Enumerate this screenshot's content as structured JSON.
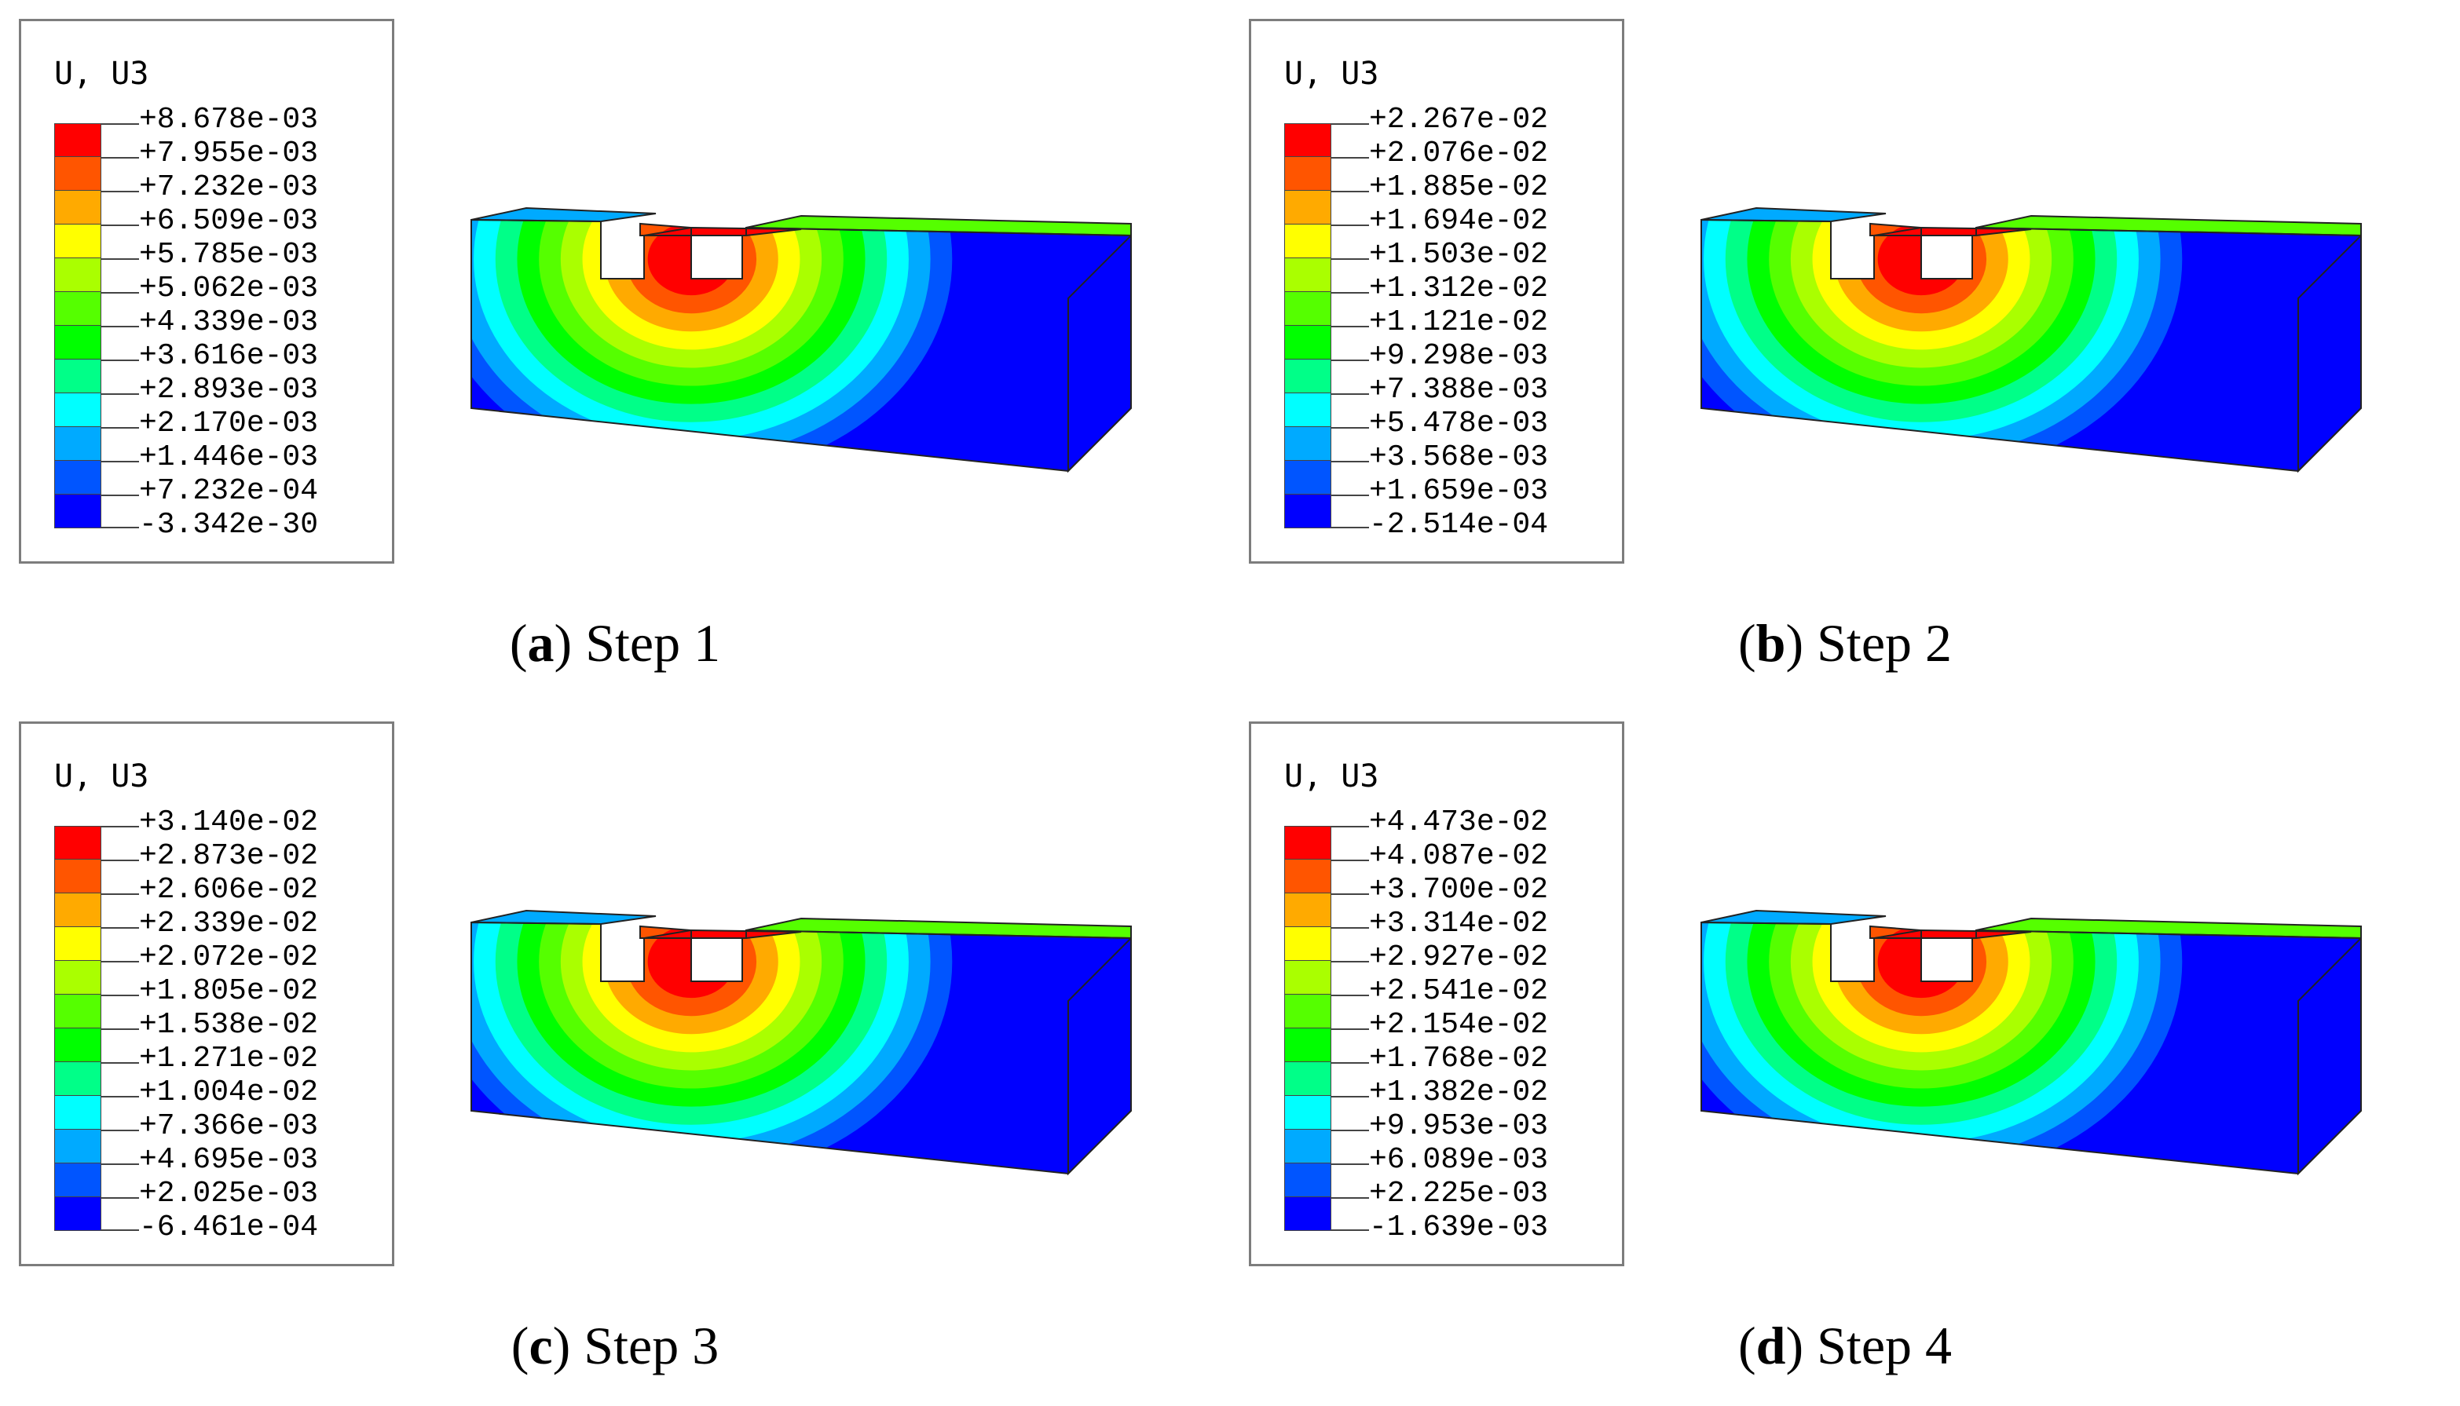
{
  "panels": [
    {
      "id": "a",
      "legend_title": "U, U3",
      "labels": [
        "+8.678e-03",
        "+7.955e-03",
        "+7.232e-03",
        "+6.509e-03",
        "+5.785e-03",
        "+5.062e-03",
        "+4.339e-03",
        "+3.616e-03",
        "+2.893e-03",
        "+2.170e-03",
        "+1.446e-03",
        "+7.232e-04",
        "-3.342e-30"
      ],
      "caption_letter": "a",
      "caption_text": "Step 1"
    },
    {
      "id": "b",
      "legend_title": "U, U3",
      "labels": [
        "+2.267e-02",
        "+2.076e-02",
        "+1.885e-02",
        "+1.694e-02",
        "+1.503e-02",
        "+1.312e-02",
        "+1.121e-02",
        "+9.298e-03",
        "+7.388e-03",
        "+5.478e-03",
        "+3.568e-03",
        "+1.659e-03",
        "-2.514e-04"
      ],
      "caption_letter": "b",
      "caption_text": "Step 2"
    },
    {
      "id": "c",
      "legend_title": "U, U3",
      "labels": [
        "+3.140e-02",
        "+2.873e-02",
        "+2.606e-02",
        "+2.339e-02",
        "+2.072e-02",
        "+1.805e-02",
        "+1.538e-02",
        "+1.271e-02",
        "+1.004e-02",
        "+7.366e-03",
        "+4.695e-03",
        "+2.025e-03",
        "-6.461e-04"
      ],
      "caption_letter": "c",
      "caption_text": "Step 3"
    },
    {
      "id": "d",
      "legend_title": "U, U3",
      "labels": [
        "+4.473e-02",
        "+4.087e-02",
        "+3.700e-02",
        "+3.314e-02",
        "+2.927e-02",
        "+2.541e-02",
        "+2.154e-02",
        "+1.768e-02",
        "+1.382e-02",
        "+9.953e-03",
        "+6.089e-03",
        "+2.225e-03",
        "-1.639e-03"
      ],
      "caption_letter": "d",
      "caption_text": "Step 4"
    }
  ],
  "colormap": [
    "#ff0000",
    "#ff5500",
    "#ffaa00",
    "#ffff00",
    "#aaff00",
    "#55ff00",
    "#00ff00",
    "#00ff88",
    "#00ffff",
    "#00aaff",
    "#0055ff",
    "#0000ff"
  ]
}
